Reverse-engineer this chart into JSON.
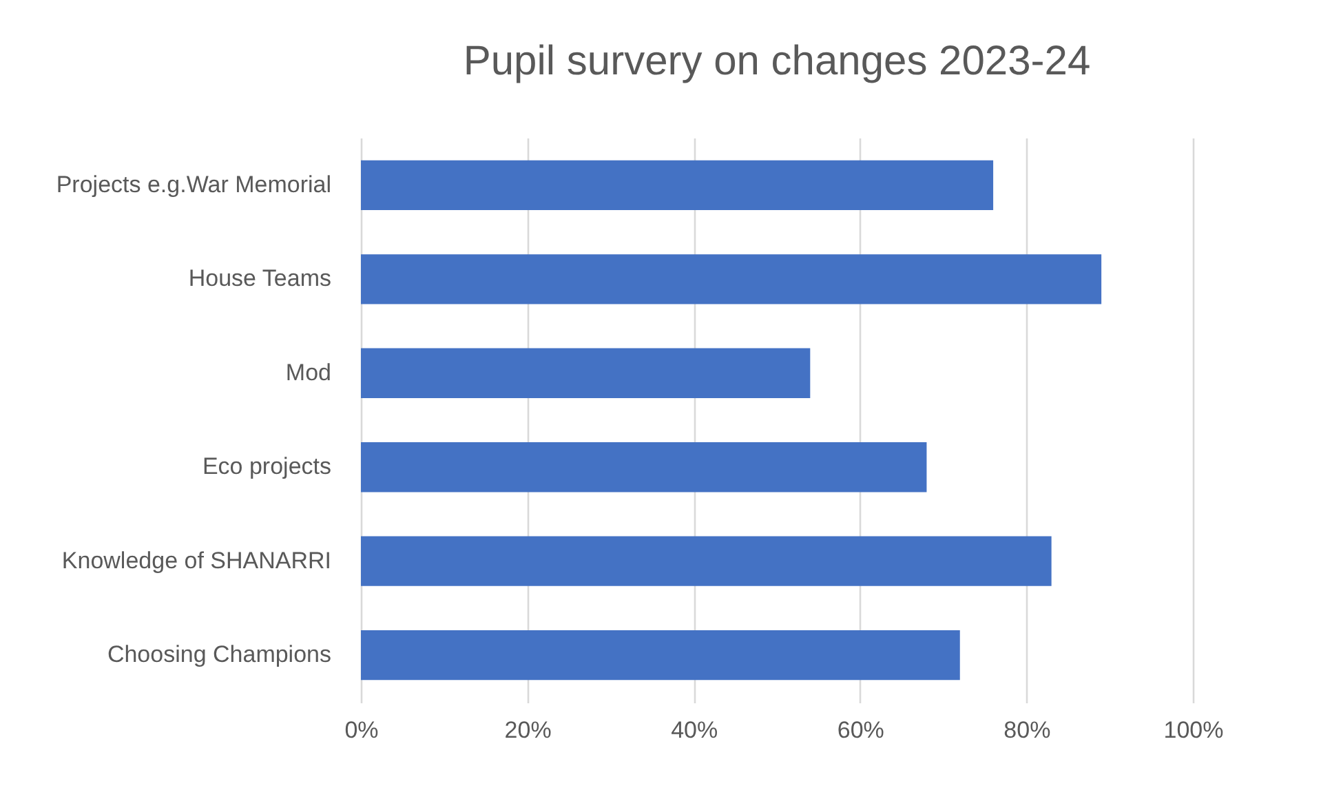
{
  "chart_data": {
    "type": "bar",
    "orientation": "horizontal",
    "title": "Pupil survery on changes  2023-24",
    "categories": [
      "Projects e.g.War Memorial",
      "House Teams",
      "Mod",
      "Eco projects",
      "Knowledge of SHANARRI",
      "Choosing Champions"
    ],
    "values": [
      76,
      89,
      54,
      68,
      83,
      72
    ],
    "color": "#4472c4",
    "xlim": [
      0,
      100
    ],
    "xticks": [
      {
        "value": 0,
        "label": "0%"
      },
      {
        "value": 20,
        "label": "20%"
      },
      {
        "value": 40,
        "label": "40%"
      },
      {
        "value": 60,
        "label": "60%"
      },
      {
        "value": 80,
        "label": "80%"
      },
      {
        "value": 100,
        "label": "100%"
      }
    ],
    "grid": "x"
  }
}
